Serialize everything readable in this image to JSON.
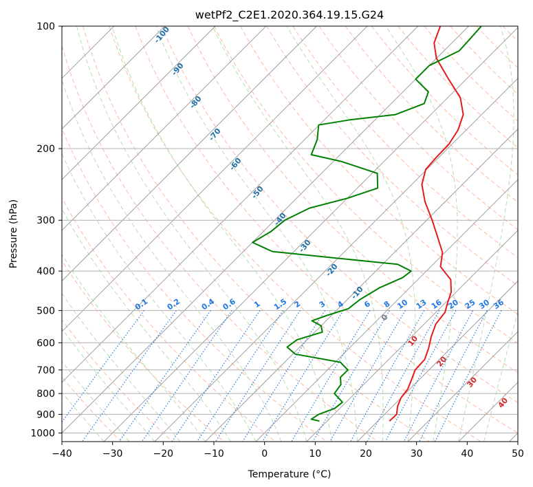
{
  "chart_data": {
    "type": "line",
    "subtype": "skew-t log-p diagram",
    "title": "wetPf2_C2E1.2020.364.19.15.G24",
    "xlabel": "Temperature (°C)",
    "ylabel": "Pressure (hPa)",
    "xlim": [
      -40,
      50
    ],
    "ylim": [
      1050,
      100
    ],
    "y_scale": "log",
    "grid": true,
    "x_ticks": [
      "−40",
      "−30",
      "−20",
      "−10",
      "0",
      "10",
      "20",
      "30",
      "40",
      "50"
    ],
    "y_ticks": [
      "100",
      "200",
      "300",
      "400",
      "500",
      "600",
      "700",
      "800",
      "900",
      "1000"
    ],
    "series": [
      {
        "color": "#e41a1c",
        "points": [
          {
            "p": 935,
            "t": 22.3
          },
          {
            "p": 900,
            "t": 22.4
          },
          {
            "p": 860,
            "t": 21.0
          },
          {
            "p": 820,
            "t": 20.0
          },
          {
            "p": 780,
            "t": 19.6
          },
          {
            "p": 740,
            "t": 18.5
          },
          {
            "p": 700,
            "t": 17.3
          },
          {
            "p": 660,
            "t": 17.1
          },
          {
            "p": 620,
            "t": 15.7
          },
          {
            "p": 580,
            "t": 13.9
          },
          {
            "p": 540,
            "t": 12.3
          },
          {
            "p": 505,
            "t": 11.8
          },
          {
            "p": 480,
            "t": 10.5
          },
          {
            "p": 450,
            "t": 9.0
          },
          {
            "p": 420,
            "t": 6.5
          },
          {
            "p": 390,
            "t": 1.9
          },
          {
            "p": 360,
            "t": -0.5
          },
          {
            "p": 330,
            "t": -4.5
          },
          {
            "p": 300,
            "t": -8.9
          },
          {
            "p": 270,
            "t": -14.0
          },
          {
            "p": 245,
            "t": -18.0
          },
          {
            "p": 225,
            "t": -20.2
          },
          {
            "p": 210,
            "t": -20.5
          },
          {
            "p": 195,
            "t": -20.6
          },
          {
            "p": 180,
            "t": -21.6
          },
          {
            "p": 165,
            "t": -23.6
          },
          {
            "p": 150,
            "t": -27.5
          },
          {
            "p": 135,
            "t": -33.5
          },
          {
            "p": 120,
            "t": -40.0
          },
          {
            "p": 110,
            "t": -43.5
          },
          {
            "p": 100,
            "t": -45.6
          }
        ]
      },
      {
        "color": "#008000",
        "points": [
          {
            "p": 935,
            "t": 8.5
          },
          {
            "p": 925,
            "t": 6.5
          },
          {
            "p": 900,
            "t": 7.0
          },
          {
            "p": 870,
            "t": 9.0
          },
          {
            "p": 840,
            "t": 9.3
          },
          {
            "p": 800,
            "t": 6.0
          },
          {
            "p": 760,
            "t": 5.5
          },
          {
            "p": 730,
            "t": 4.0
          },
          {
            "p": 700,
            "t": 4.0
          },
          {
            "p": 670,
            "t": 1.0
          },
          {
            "p": 640,
            "t": -9.5
          },
          {
            "p": 615,
            "t": -12.5
          },
          {
            "p": 590,
            "t": -12.0
          },
          {
            "p": 565,
            "t": -8.5
          },
          {
            "p": 545,
            "t": -10.0
          },
          {
            "p": 530,
            "t": -12.8
          },
          {
            "p": 515,
            "t": -11.0
          },
          {
            "p": 495,
            "t": -8.0
          },
          {
            "p": 470,
            "t": -7.5
          },
          {
            "p": 440,
            "t": -6.0
          },
          {
            "p": 415,
            "t": -3.4
          },
          {
            "p": 400,
            "t": -3.0
          },
          {
            "p": 385,
            "t": -7.0
          },
          {
            "p": 372,
            "t": -20.0
          },
          {
            "p": 358,
            "t": -34.3
          },
          {
            "p": 340,
            "t": -40.0
          },
          {
            "p": 320,
            "t": -38.5
          },
          {
            "p": 300,
            "t": -38.0
          },
          {
            "p": 280,
            "t": -35.5
          },
          {
            "p": 265,
            "t": -30.0
          },
          {
            "p": 250,
            "t": -26.0
          },
          {
            "p": 230,
            "t": -29.0
          },
          {
            "p": 215,
            "t": -38.5
          },
          {
            "p": 207,
            "t": -45.7
          },
          {
            "p": 190,
            "t": -47.5
          },
          {
            "p": 175,
            "t": -50.1
          },
          {
            "p": 170,
            "t": -45.0
          },
          {
            "p": 165,
            "t": -37.0
          },
          {
            "p": 155,
            "t": -33.5
          },
          {
            "p": 145,
            "t": -35.0
          },
          {
            "p": 135,
            "t": -40.0
          },
          {
            "p": 125,
            "t": -40.0
          },
          {
            "p": 115,
            "t": -37.0
          },
          {
            "p": 108,
            "t": -37.2
          },
          {
            "p": 100,
            "t": -37.5
          }
        ]
      }
    ],
    "dry_adiabat_labels": [
      "-100",
      "-90",
      "-80",
      "-70",
      "-60",
      "-50",
      "-40",
      "-30",
      "-20",
      "-10",
      "0",
      "10",
      "20",
      "30",
      "40"
    ],
    "mixing_ratio_labels": [
      "0.1",
      "0.2",
      "0.4",
      "0.6",
      "1",
      "1.5",
      "2",
      "3",
      "4",
      "6",
      "8",
      "10",
      "13",
      "16",
      "20",
      "25",
      "30",
      "36"
    ],
    "colors": {
      "temperature": "#e41a1c",
      "dewpoint": "#008000",
      "isotherm": "#a0a0a0",
      "isobar": "#b0b0b0",
      "dry_adiabat": "#fcb99f",
      "moist_adiabat": "#b5dcb0",
      "mixing_ratio": "#1f77e4",
      "dry_label_cold": "#1f6fa8",
      "dry_label_warm": "#d62728"
    }
  }
}
